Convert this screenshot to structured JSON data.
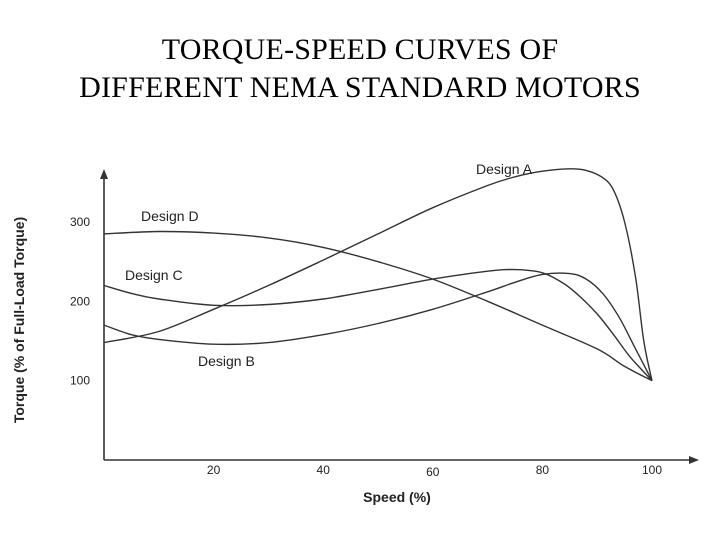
{
  "title_line1": "TORQUE-SPEED CURVES OF",
  "title_line2": "DIFFERENT NEMA STANDARD MOTORS",
  "chart_data": {
    "type": "line",
    "xlabel": "Speed (%)",
    "ylabel": "Torque (% of Full-Load Torque)",
    "x_ticks": [
      20,
      40,
      60,
      80,
      100
    ],
    "y_ticks": [
      100,
      200,
      300
    ],
    "xlim": [
      0,
      108
    ],
    "ylim": [
      0,
      380
    ],
    "grid": false,
    "series": [
      {
        "name": "Design A",
        "x": [
          0,
          10,
          20,
          30,
          40,
          50,
          60,
          70,
          75,
          80,
          85,
          88,
          91,
          93,
          95,
          97,
          98.5,
          100
        ],
        "y": [
          148,
          162,
          190,
          220,
          252,
          285,
          318,
          346,
          357,
          364,
          367,
          365,
          356,
          340,
          300,
          230,
          150,
          100
        ]
      },
      {
        "name": "Design B",
        "x": [
          0,
          5,
          10,
          20,
          30,
          40,
          50,
          60,
          70,
          75,
          80,
          85,
          88,
          91,
          94,
          97,
          100
        ],
        "y": [
          170,
          158,
          152,
          146,
          148,
          158,
          172,
          190,
          212,
          224,
          234,
          235,
          228,
          210,
          180,
          140,
          100
        ]
      },
      {
        "name": "Design C",
        "x": [
          0,
          5,
          10,
          20,
          30,
          40,
          50,
          60,
          70,
          75,
          80,
          84,
          87,
          90,
          93,
          96,
          100
        ],
        "y": [
          220,
          210,
          203,
          195,
          196,
          203,
          215,
          228,
          238,
          240,
          236,
          222,
          205,
          184,
          158,
          130,
          100
        ]
      },
      {
        "name": "Design D",
        "x": [
          0,
          10,
          20,
          30,
          40,
          50,
          60,
          70,
          80,
          90,
          95,
          100
        ],
        "y": [
          285,
          288,
          286,
          280,
          268,
          250,
          228,
          200,
          170,
          140,
          118,
          100
        ]
      }
    ]
  }
}
